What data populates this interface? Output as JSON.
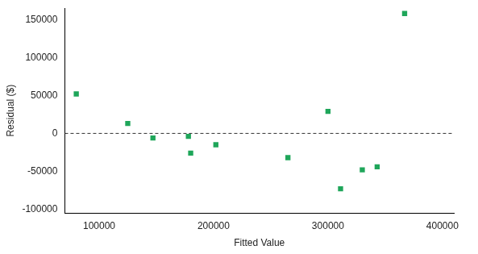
{
  "chart_data": {
    "type": "scatter",
    "x_label": "Fitted Value",
    "y_label": "Residual ($)",
    "x": [
      80000,
      125000,
      147000,
      178000,
      180000,
      202000,
      265000,
      300000,
      311000,
      330000,
      343000,
      367000
    ],
    "values": [
      52000,
      13000,
      -6000,
      -4000,
      -26000,
      -15000,
      -32000,
      29000,
      -73000,
      -48000,
      -44000,
      158000
    ],
    "color": "#1fa65a",
    "marker": "square",
    "xlim": [
      70000,
      410000
    ],
    "xticks": [
      100000,
      200000,
      300000,
      400000
    ],
    "ylim": [
      -105000,
      165000
    ],
    "yticks": [
      -100000,
      -50000,
      0,
      50000,
      100000,
      150000
    ],
    "hlines": [
      0
    ],
    "grid": false
  }
}
